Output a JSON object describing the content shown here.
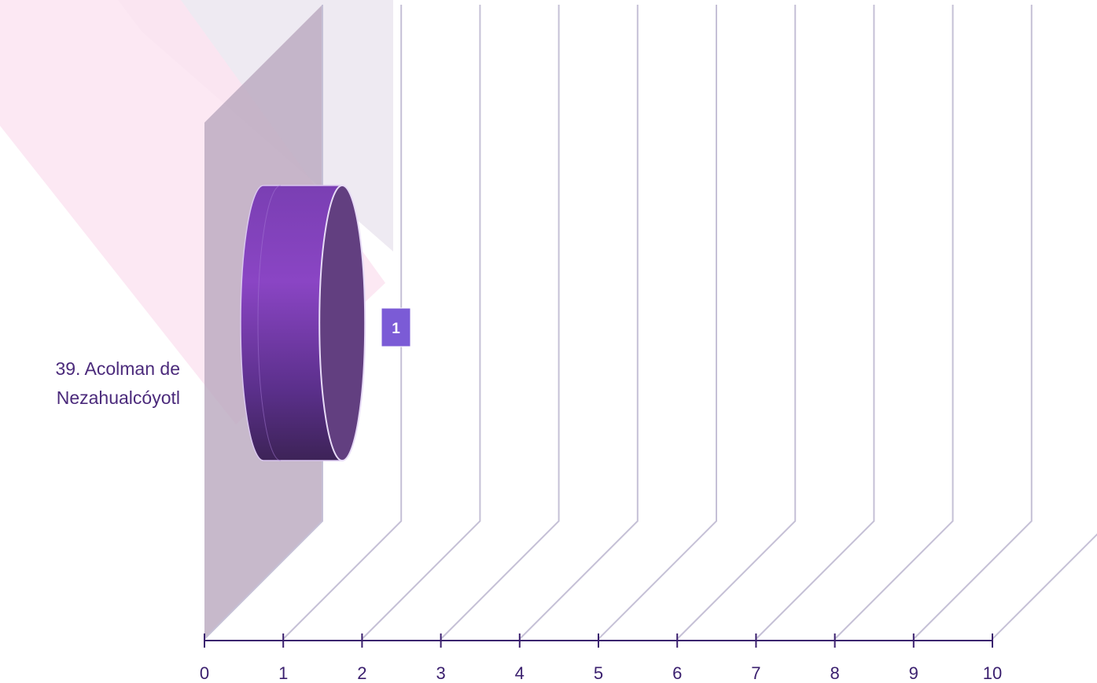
{
  "chart_data": {
    "type": "bar",
    "orientation": "horizontal",
    "style": "3d-cylinder",
    "categories": [
      "39. Acolman de Nezahualcóyotl"
    ],
    "category_lines": [
      "39. Acolman de",
      "Nezahualcóyotl"
    ],
    "values": [
      1
    ],
    "data_labels": [
      "1"
    ],
    "x_ticks": [
      "0",
      "1",
      "2",
      "3",
      "4",
      "5",
      "6",
      "7",
      "8",
      "9",
      "10"
    ],
    "xlim": [
      0,
      10
    ],
    "grid": true,
    "legend": "none",
    "colors": {
      "bar": "#8a45c4",
      "bar_dark": "#3d2357",
      "bar_cap": "#623f80",
      "axis": "#3a1f6e",
      "grid": "#c5c0d6",
      "back_wall": "#b9a7be",
      "label_box": "#7b5bd6"
    }
  }
}
